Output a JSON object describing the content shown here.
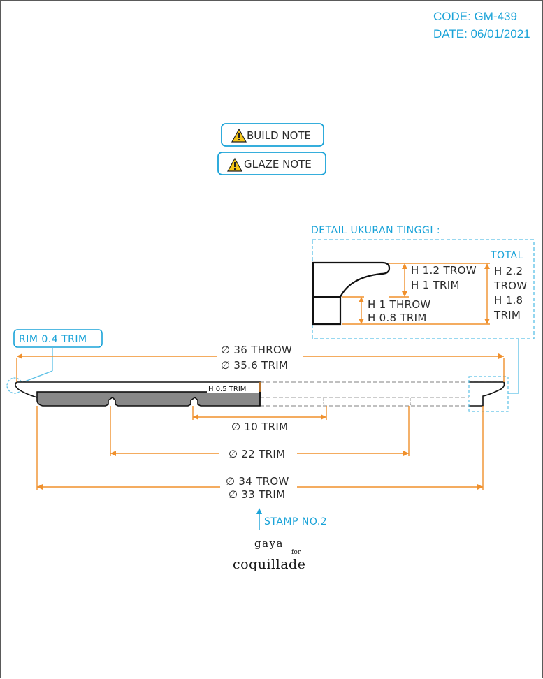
{
  "header": {
    "code": "CODE: GM-439",
    "date": "DATE: 06/01/2021"
  },
  "notes": {
    "build": "BUILD NOTE",
    "glaze": "GLAZE NOTE",
    "warning_icon": "warning-triangle-icon"
  },
  "detail": {
    "title": "DETAIL UKURAN TINGGI :",
    "total_label": "TOTAL",
    "rim_throw": "H 1.2 TROW",
    "rim_trim": "H 1 TRIM",
    "foot_throw": "H 1 THROW",
    "foot_trim": "H 0.8 TRIM",
    "total_throw_1": "H 2.2",
    "total_throw_2": "TROW",
    "total_trim_1": "H 1.8",
    "total_trim_2": "TRIM"
  },
  "dimensions": {
    "rim": "RIM 0.4 TRIM",
    "dia36": "∅ 36 THROW",
    "dia356": "∅ 35.6 TRIM",
    "h05": "H 0.5 TRIM",
    "dia10": "∅ 10 TRIM",
    "dia22": "∅ 22 TRIM",
    "dia34": "∅ 34 TROW",
    "dia33": "∅ 33 TRIM"
  },
  "stamp": "STAMP NO.2",
  "brand": {
    "line1": "gaya",
    "for": "for",
    "line2": "coquillade"
  },
  "colors": {
    "accent_blue": "#1aa3d8",
    "dimension_orange": "#f0902c",
    "section_gray": "#888888"
  }
}
